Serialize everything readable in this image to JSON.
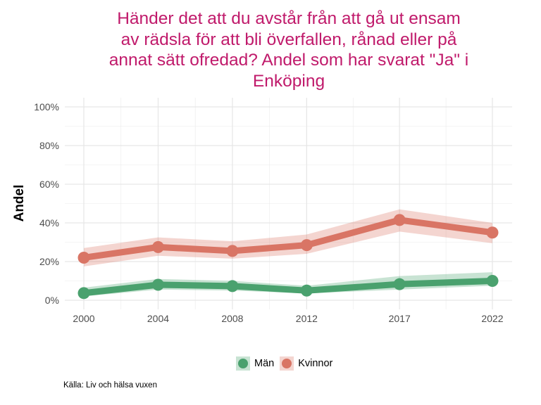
{
  "chart_data": {
    "type": "line",
    "title": "Händer det att du avstår från att gå ut ensam av rädsla för att bli överfallen, rånad eller på annat sätt ofredad? Andel som har svarat \"Ja\" i Enköping",
    "title_lines": [
      "Händer det att du avstår från att gå ut ensam",
      "av rädsla för att bli överfallen, rånad eller på",
      "annat sätt ofredad? Andel som har svarat \"Ja\" i",
      "Enköping"
    ],
    "xlabel": "",
    "ylabel": "Andel",
    "x": [
      2000,
      2004,
      2008,
      2012,
      2017,
      2022
    ],
    "x_tick_labels": [
      "2000",
      "2004",
      "2008",
      "2012",
      "2017",
      "2022"
    ],
    "xlim": [
      1999,
      2024.5
    ],
    "ylim": [
      -3,
      104
    ],
    "y_ticks": [
      0,
      20,
      40,
      60,
      80,
      100
    ],
    "y_tick_labels": [
      "0%",
      "20%",
      "40%",
      "60%",
      "80%",
      "100%"
    ],
    "grid": true,
    "legend_position": "bottom",
    "series": [
      {
        "name": "Män",
        "color": "#4aa16e",
        "ribbon_color": "#4aa16e",
        "values": [
          3.7,
          8.0,
          7.3,
          5.0,
          8.3,
          10.0
        ],
        "lower": [
          2.0,
          5.5,
          5.0,
          3.5,
          5.5,
          7.5
        ],
        "upper": [
          6.5,
          11.0,
          10.0,
          7.5,
          12.5,
          14.5
        ]
      },
      {
        "name": "Kvinnor",
        "color": "#d97565",
        "ribbon_color": "#d97565",
        "values": [
          22.0,
          27.5,
          25.5,
          28.5,
          41.5,
          35.0
        ],
        "lower": [
          17.5,
          23.0,
          21.5,
          24.0,
          35.5,
          29.5
        ],
        "upper": [
          27.0,
          32.5,
          30.5,
          34.0,
          47.0,
          40.0
        ]
      }
    ],
    "caption": "Källa: Liv och hälsa vuxen"
  }
}
